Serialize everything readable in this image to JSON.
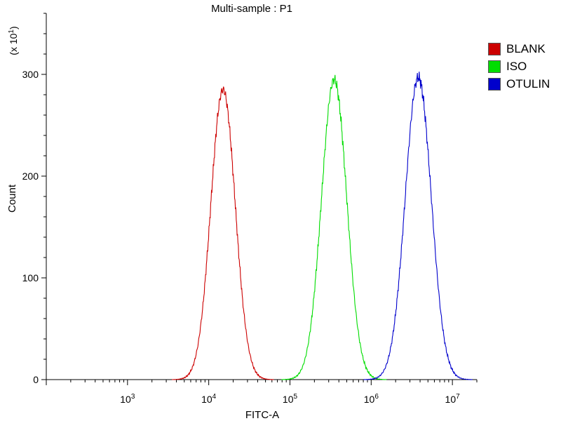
{
  "chart_data": {
    "type": "area",
    "title": "Multi-sample : P1",
    "xlabel": "FITC-A",
    "ylabel": "Count",
    "y_multiplier_label": "(x 10",
    "y_multiplier_exp": "1",
    "y_multiplier_close": ")",
    "x_scale": "log",
    "xlim": [
      100,
      20000000
    ],
    "ylim": [
      0,
      360
    ],
    "y_ticks": [
      0,
      100,
      200,
      300
    ],
    "x_ticks": [
      {
        "value": 1000,
        "base": "10",
        "exp": "3"
      },
      {
        "value": 10000,
        "base": "10",
        "exp": "4"
      },
      {
        "value": 100000,
        "base": "10",
        "exp": "5"
      },
      {
        "value": 1000000,
        "base": "10",
        "exp": "6"
      },
      {
        "value": 10000000,
        "base": "10",
        "exp": "7"
      }
    ],
    "legend_position": "right",
    "series": [
      {
        "name": "BLANK",
        "color": "#cc0000",
        "peak_x": 15000,
        "peak_y": 285,
        "log_width": 0.15
      },
      {
        "name": "ISO",
        "color": "#00dd00",
        "peak_x": 350000,
        "peak_y": 295,
        "log_width": 0.155
      },
      {
        "name": "OTULIN",
        "color": "#0000cc",
        "peak_x": 3800000,
        "peak_y": 297,
        "log_width": 0.16
      }
    ]
  }
}
